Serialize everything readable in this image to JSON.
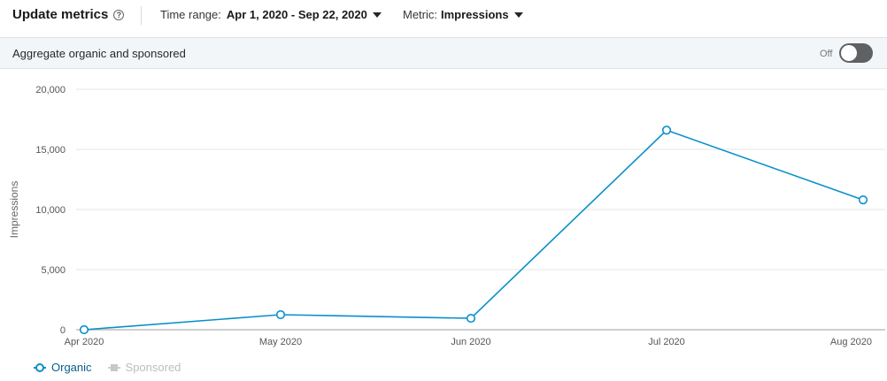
{
  "header": {
    "title": "Update metrics",
    "help_icon": "?",
    "time_range_label": "Time range:",
    "time_range_value": "Apr 1, 2020 - Sep 22, 2020",
    "metric_label": "Metric:",
    "metric_value": "Impressions"
  },
  "aggregate": {
    "label": "Aggregate organic and sponsored",
    "toggle_state": "Off"
  },
  "colors": {
    "organic": "#0a8fcb",
    "sponsored": "#c8c8c8",
    "grid": "#e5e5e5",
    "axis": "#bdbdbd"
  },
  "chart_data": {
    "type": "line",
    "categories": [
      "Apr 2020",
      "May 2020",
      "Jun 2020",
      "Jul 2020",
      "Aug 2020"
    ],
    "series": [
      {
        "name": "Organic",
        "values": [
          0,
          1250,
          950,
          16600,
          10800
        ]
      }
    ],
    "ylabel": "Impressions",
    "yticks": [
      "20,000",
      "15,000",
      "10,000",
      "5,000",
      "0"
    ],
    "ylim": [
      0,
      20000
    ],
    "legend": [
      "Organic",
      "Sponsored"
    ]
  }
}
